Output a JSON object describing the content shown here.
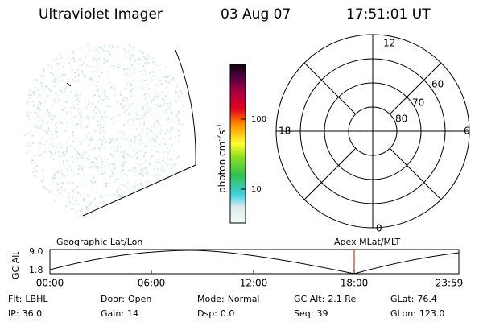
{
  "header": {
    "title": "Ultraviolet Imager",
    "date": "03 Aug 07",
    "time": "17:51:01 UT"
  },
  "colorbar": {
    "label": "photon cm",
    "exp1": "-2",
    "unit2": "s",
    "exp2": "-1",
    "ticks": [
      "100",
      "10"
    ]
  },
  "polar": {
    "mlt_labels": [
      "12",
      "18",
      "6",
      "0"
    ],
    "lat_labels": [
      "60",
      "70",
      "80"
    ]
  },
  "altitude": {
    "ylabel": "GC Alt",
    "yticks": [
      "9.0",
      "1.8"
    ],
    "left_title": "Geographic Lat/Lon",
    "right_title": "Apex MLat/MLT",
    "xticks": [
      "00:00",
      "06:00",
      "12:00",
      "18:00",
      "23:59"
    ]
  },
  "footer": {
    "rows": [
      [
        {
          "label": "Flt:",
          "value": "LBHL"
        },
        {
          "label": "Door:",
          "value": "Open"
        },
        {
          "label": "Mode:",
          "value": "Normal"
        },
        {
          "label": "GC Alt:",
          "value": "2.1 Re"
        },
        {
          "label": "GLat:",
          "value": "76.4"
        }
      ],
      [
        {
          "label": "IP:",
          "value": "36.0"
        },
        {
          "label": "Gain:",
          "value": "14"
        },
        {
          "label": "Dsp:",
          "value": "0.0"
        },
        {
          "label": "Seq:",
          "value": "39"
        },
        {
          "label": "GLon:",
          "value": "123.0"
        }
      ]
    ]
  }
}
